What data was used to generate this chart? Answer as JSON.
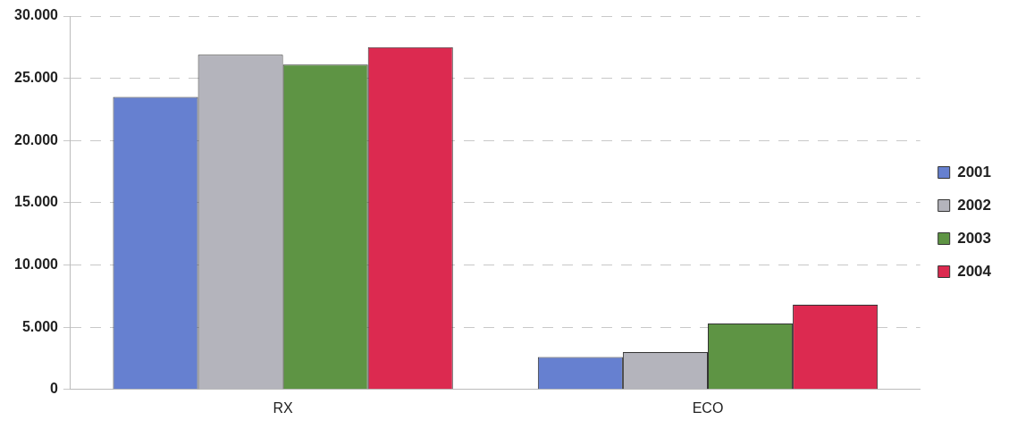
{
  "chart_data": {
    "type": "bar",
    "categories": [
      "RX",
      "ECO"
    ],
    "series": [
      {
        "name": "2001",
        "color": "#6680d0",
        "values": [
          23500,
          2600
        ]
      },
      {
        "name": "2002",
        "color": "#b4b4bc",
        "values": [
          26900,
          3000
        ]
      },
      {
        "name": "2003",
        "color": "#5e9444",
        "values": [
          26100,
          5300
        ]
      },
      {
        "name": "2004",
        "color": "#dc2a50",
        "values": [
          27500,
          6800
        ]
      }
    ],
    "ylim": [
      0,
      30000
    ],
    "yticks": [
      {
        "value": 0,
        "label": "0"
      },
      {
        "value": 5000,
        "label": "5.000"
      },
      {
        "value": 10000,
        "label": "10.000"
      },
      {
        "value": 15000,
        "label": "15.000"
      },
      {
        "value": 20000,
        "label": "20.000"
      },
      {
        "value": 25000,
        "label": "25.000"
      },
      {
        "value": 30000,
        "label": "30.000"
      }
    ],
    "grid": "y",
    "line_style": "dashed",
    "legend": "right"
  }
}
